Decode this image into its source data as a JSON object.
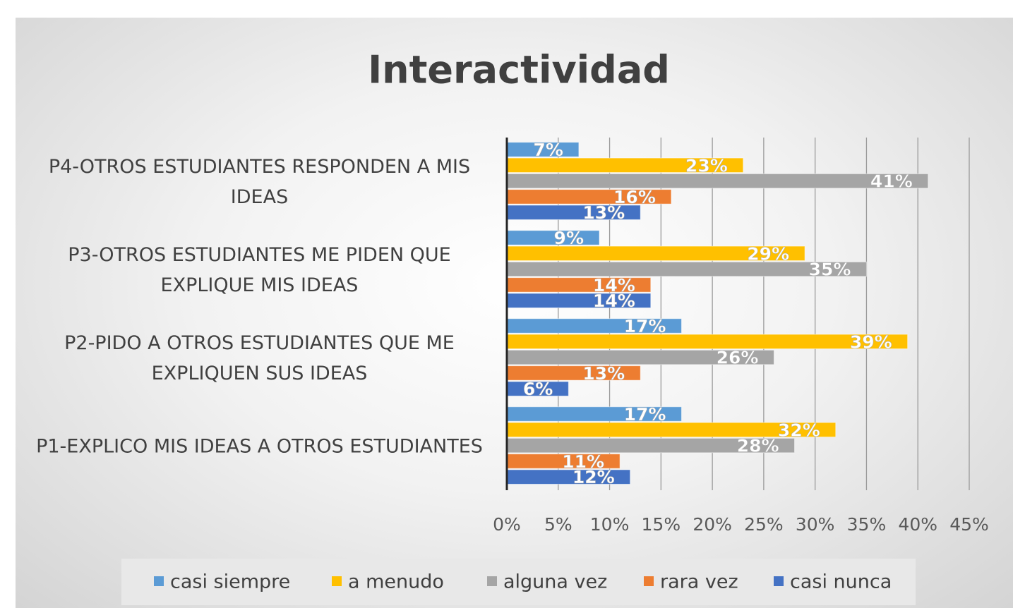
{
  "chart_data": {
    "type": "hbar",
    "title": "Interactividad",
    "categories": [
      "P1-EXPLICO MIS IDEAS A OTROS ESTUDIANTES",
      "P2-PIDO A OTROS ESTUDIANTES QUE ME EXPLIQUEN SUS IDEAS",
      "P3-OTROS ESTUDIANTES ME PIDEN QUE EXPLIQUE MIS IDEAS",
      "P4-OTROS ESTUDIANTES RESPONDEN A MIS IDEAS"
    ],
    "series": [
      {
        "name": "casi siempre",
        "color": "#5b9bd5",
        "values": [
          17,
          17,
          9,
          7
        ],
        "value_labels": [
          "17%",
          "17%",
          "9%",
          "7%"
        ]
      },
      {
        "name": "a menudo",
        "color": "#ffc000",
        "values": [
          32,
          39,
          29,
          23
        ],
        "value_labels": [
          "32%",
          "39%",
          "29%",
          "23%"
        ]
      },
      {
        "name": "alguna vez",
        "color": "#a5a5a5",
        "values": [
          28,
          26,
          35,
          41
        ],
        "value_labels": [
          "28%",
          "26%",
          "35%",
          "41%"
        ]
      },
      {
        "name": "rara vez",
        "color": "#ed7d31",
        "values": [
          11,
          13,
          14,
          16
        ],
        "value_labels": [
          "11%",
          "13%",
          "14%",
          "16%"
        ]
      },
      {
        "name": "casi nunca",
        "color": "#4472c4",
        "values": [
          12,
          6,
          14,
          13
        ],
        "value_labels": [
          "12%",
          "6%",
          "14%",
          "13%"
        ]
      }
    ],
    "xlim": [
      0,
      45
    ],
    "xticks": [
      {
        "value": 0,
        "label": "0%"
      },
      {
        "value": 5,
        "label": "5%"
      },
      {
        "value": 10,
        "label": "10%"
      },
      {
        "value": 15,
        "label": "15%"
      },
      {
        "value": 20,
        "label": "20%"
      },
      {
        "value": 25,
        "label": "25%"
      },
      {
        "value": 30,
        "label": "30%"
      },
      {
        "value": 35,
        "label": "35%"
      },
      {
        "value": 40,
        "label": "40%"
      },
      {
        "value": 45,
        "label": "45%"
      }
    ],
    "grid": true,
    "legend": "bottom"
  }
}
